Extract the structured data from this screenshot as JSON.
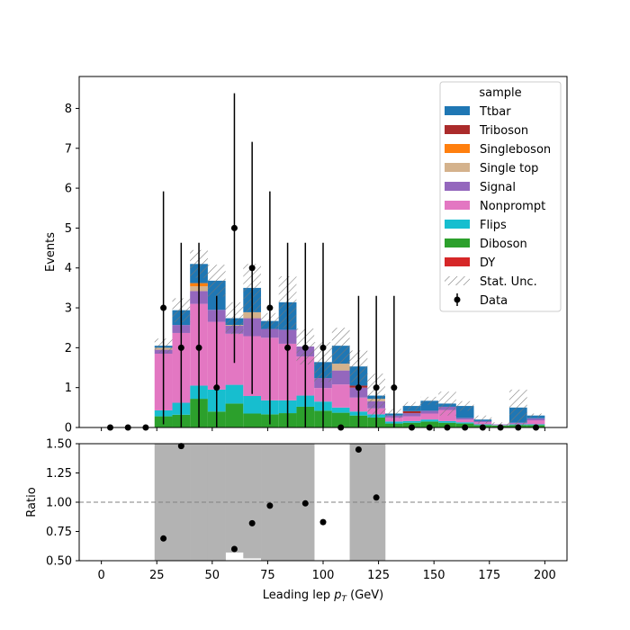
{
  "chart_data": [
    {
      "type": "bar",
      "stacked": true,
      "xlim": [
        -10,
        210
      ],
      "ylim": [
        0,
        8.8
      ],
      "ylabel": "Events",
      "yticks": [
        0,
        1,
        2,
        3,
        4,
        5,
        6,
        7,
        8
      ],
      "xticks": [
        0,
        25,
        50,
        75,
        100,
        125,
        150,
        175,
        200
      ],
      "bin_width": 8,
      "bin_edges": [
        0,
        8,
        16,
        24,
        32,
        40,
        48,
        56,
        64,
        72,
        80,
        88,
        96,
        104,
        112,
        120,
        128,
        136,
        144,
        152,
        160,
        168,
        176,
        184,
        192,
        200
      ],
      "legend": {
        "title": "sample",
        "placement": "top-right",
        "entries": [
          "Ttbar",
          "Triboson",
          "Singleboson",
          "Single top",
          "Signal",
          "Nonprompt",
          "Flips",
          "Diboson",
          "DY",
          "Stat. Unc.",
          "Data"
        ]
      },
      "series": [
        {
          "name": "DY",
          "color": "#d62728",
          "values": [
            0,
            0,
            0,
            0,
            0,
            0,
            0,
            0,
            0,
            0,
            0,
            0,
            0,
            0,
            0,
            0,
            0,
            0,
            0,
            0,
            0,
            0,
            0,
            0,
            0
          ]
        },
        {
          "name": "Diboson",
          "color": "#2ca02c",
          "values": [
            0,
            0,
            0,
            0.28,
            0.32,
            0.72,
            0.4,
            0.6,
            0.35,
            0.33,
            0.36,
            0.52,
            0.42,
            0.37,
            0.3,
            0.25,
            0.1,
            0.12,
            0.15,
            0.12,
            0.1,
            0.06,
            0.05,
            0.06,
            0.06
          ]
        },
        {
          "name": "Flips",
          "color": "#17becf",
          "values": [
            0,
            0,
            0,
            0.15,
            0.3,
            0.33,
            0.55,
            0.47,
            0.44,
            0.35,
            0.32,
            0.28,
            0.23,
            0.13,
            0.1,
            0.08,
            0.05,
            0.04,
            0.05,
            0.04,
            0.03,
            0.02,
            0.01,
            0.02,
            0.02
          ]
        },
        {
          "name": "Nonprompt",
          "color": "#e377c2",
          "values": [
            0,
            0,
            0,
            1.42,
            1.75,
            2.05,
            1.7,
            1.28,
            1.5,
            1.57,
            1.42,
            0.98,
            0.34,
            0.58,
            0.35,
            0.15,
            0.1,
            0.12,
            0.15,
            0.28,
            0.07,
            0.05,
            0.01,
            0.02,
            0.1
          ]
        },
        {
          "name": "Signal",
          "color": "#9467bd",
          "values": [
            0,
            0,
            0,
            0.1,
            0.2,
            0.32,
            0.3,
            0.2,
            0.45,
            0.22,
            0.35,
            0.25,
            0.25,
            0.35,
            0.25,
            0.18,
            0.05,
            0.08,
            0.07,
            0.08,
            0.04,
            0.03,
            0.01,
            0.02,
            0.05
          ]
        },
        {
          "name": "Single top",
          "color": "#d4b28c",
          "values": [
            0,
            0,
            0,
            0.05,
            0,
            0.12,
            0,
            0.02,
            0.15,
            0,
            0,
            0,
            0,
            0.17,
            0,
            0.06,
            0,
            0,
            0,
            0,
            0,
            0,
            0,
            0,
            0
          ]
        },
        {
          "name": "Singleboson",
          "color": "#ff7f0e",
          "values": [
            0,
            0,
            0,
            0,
            0,
            0.08,
            0,
            0,
            0,
            0,
            0,
            0,
            0,
            0,
            0,
            0,
            0,
            0,
            0,
            0,
            0,
            0,
            0,
            0,
            0
          ]
        },
        {
          "name": "Triboson",
          "color": "#ab2b2b",
          "values": [
            0,
            0,
            0,
            0,
            0,
            0,
            0,
            0,
            0,
            0,
            0,
            0,
            0,
            0,
            0.05,
            0,
            0,
            0.05,
            0,
            0,
            0,
            0,
            0,
            0,
            0
          ]
        },
        {
          "name": "Ttbar",
          "color": "#1f77b4",
          "values": [
            0,
            0,
            0,
            0.05,
            0.37,
            0.48,
            0.73,
            0.17,
            0.61,
            0.2,
            0.69,
            0,
            0.4,
            0.45,
            0.48,
            0.08,
            0.05,
            0.13,
            0.25,
            0.08,
            0.3,
            0.04,
            0,
            0.38,
            0.07
          ]
        }
      ],
      "stat_unc": [
        0,
        0,
        0,
        0.18,
        0.3,
        0.35,
        0.4,
        0.4,
        0.6,
        0.2,
        0.65,
        0.45,
        0.5,
        0.45,
        0.4,
        0.55,
        0.12,
        0.1,
        0.1,
        0.3,
        0.12,
        0.1,
        0.05,
        0.45,
        0.05
      ],
      "data": {
        "x": [
          4,
          12,
          20,
          28,
          36,
          44,
          52,
          60,
          68,
          76,
          84,
          92,
          100,
          108,
          116,
          124,
          132,
          140,
          148,
          156,
          164,
          172,
          180,
          188,
          196
        ],
        "y": [
          0,
          0,
          0,
          3,
          2,
          2,
          1,
          5,
          4,
          3,
          2,
          2,
          2,
          0,
          1,
          1,
          1,
          0,
          0,
          0,
          0,
          0,
          0,
          0,
          0
        ],
        "err": [
          0,
          0,
          0,
          2.92,
          2.63,
          2.63,
          2.3,
          3.38,
          3.16,
          2.92,
          2.63,
          2.63,
          2.63,
          0,
          2.3,
          2.3,
          2.3,
          0,
          0,
          0,
          0,
          0,
          0,
          0,
          0
        ]
      }
    },
    {
      "type": "scatter",
      "xlim": [
        -10,
        210
      ],
      "ylim": [
        0.5,
        1.5
      ],
      "ylabel": "Ratio",
      "xlabel_prefix": "Leading lep ",
      "xlabel_var": "p",
      "xlabel_sub": "T",
      "xlabel_suffix": " (GeV)",
      "xticks": [
        0,
        25,
        50,
        75,
        100,
        125,
        150,
        175,
        200
      ],
      "xtick_labels": [
        "0",
        "25",
        "50",
        "75",
        "100",
        "125",
        "150",
        "175",
        "200"
      ],
      "yticks": [
        0.5,
        0.75,
        1.0,
        1.25,
        1.5
      ],
      "ytick_labels": [
        "0.50",
        "0.75",
        "1.00",
        "1.25",
        "1.50"
      ],
      "reference_line": 1.0,
      "unc_band": {
        "color": "#b3b3b3",
        "low": [
          null,
          null,
          null,
          0.5,
          0.5,
          0.5,
          0.5,
          0.57,
          0.52,
          0.5,
          0.5,
          0.5,
          null,
          null,
          0.5,
          0.5,
          null,
          null,
          null,
          null,
          null,
          null,
          null,
          null,
          null
        ],
        "high": [
          null,
          null,
          null,
          1.5,
          1.5,
          1.5,
          1.5,
          1.5,
          1.5,
          1.5,
          1.5,
          1.5,
          null,
          null,
          1.5,
          1.5,
          null,
          null,
          null,
          null,
          null,
          null,
          null,
          null,
          null
        ]
      },
      "points": {
        "x": [
          28,
          36,
          60,
          68,
          76,
          92,
          100,
          116,
          124
        ],
        "y": [
          0.69,
          1.48,
          0.6,
          0.82,
          0.97,
          0.99,
          0.83,
          1.45,
          1.04
        ]
      }
    }
  ]
}
